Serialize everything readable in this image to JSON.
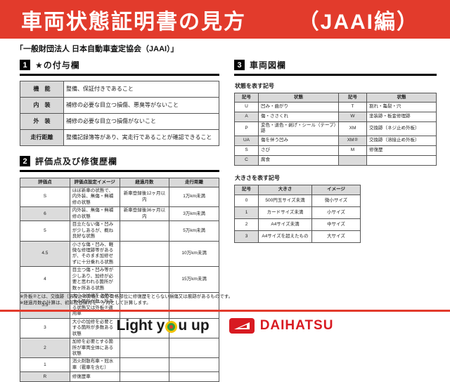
{
  "banner": {
    "title": "車両状態証明書の見方",
    "edition": "（JAAI編）",
    "bg_color": "#e23b2c"
  },
  "subtitle": "「一般財団法人 日本自動車査定協会（JAAI）」",
  "sections": {
    "s1": {
      "num": "1",
      "title": "★の付与欄"
    },
    "s2": {
      "num": "2",
      "title": "評価点及び修復歴欄"
    },
    "s3": {
      "num": "3",
      "title": "車両図欄"
    }
  },
  "star_table": {
    "rows": [
      [
        "機　能",
        "整備、保証付きであること"
      ],
      [
        "内　装",
        "補修の必要な目立つ損傷、悪臭等がないこと"
      ],
      [
        "外　装",
        "補修の必要な目立つ損傷がないこと"
      ],
      [
        "走行距離",
        "整備記録簿等があり、実走行であることが確認できること"
      ]
    ]
  },
  "eval_table": {
    "headers": [
      "評価点",
      "評価点設定イメージ",
      "経過月数",
      "走行距離"
    ],
    "rows": [
      [
        "S",
        "ほぼ新車の状態で、内外装、無傷・無補修の状態",
        "新車登録後12ヶ月以内",
        "1万km未満"
      ],
      [
        "6",
        "内外装、無傷・無補修の状態",
        "新車登録後36ヶ月以内",
        "3万km未満"
      ],
      [
        "5",
        "目立たない傷・凹みが少しあるが、概ね良好な状態",
        "",
        "5万km未満"
      ],
      [
        "4.5",
        "小さな傷・凹み、軽微な修理跡等があるが、そのまま加修せずに十分乗れる状態",
        "",
        "10万km未満"
      ],
      [
        "4",
        "目立つ傷・凹み等が少しあり、加修が必要と思われる箇所が数ヶ所ある状態",
        "",
        "15万km未満"
      ],
      [
        "3.5",
        "大小の加修を必要とする箇所が数ヶ所ある状態又は外板②適用車",
        "",
        ""
      ],
      [
        "3",
        "大小の加修を必要とする箇所が多数ある状態",
        "",
        ""
      ],
      [
        "2",
        "加修を必要とする箇所が車両全体にある状態",
        "",
        ""
      ],
      [
        "1",
        "消火剤散布車・冠水車（雹車を含む）",
        "",
        ""
      ],
      [
        "R",
        "修復歴車",
        "",
        ""
      ]
    ]
  },
  "vehicle_diagram": {
    "state_label": "状態を表す記号",
    "state_table": {
      "headers": [
        "記号",
        "状態",
        "記号",
        "状態"
      ],
      "rows": [
        [
          "U",
          "凹み・曲がり",
          "T",
          "割れ・亀裂・穴"
        ],
        [
          "A",
          "傷・ささくれ",
          "W",
          "塗装跡・板金修理跡"
        ],
        [
          "P",
          "変色・退色・剥げ・シール（テープ）跡",
          "XM",
          "交換跡（ネジ止め外板）"
        ],
        [
          "UA",
          "傷を伴う凹み",
          "XM②",
          "交換跡（溶接止め外板）"
        ],
        [
          "S",
          "さび",
          "M",
          "修復歴"
        ],
        [
          "C",
          "腐食",
          "",
          ""
        ]
      ]
    },
    "size_label": "大きさを表す記号",
    "size_table": {
      "headers": [
        "記号",
        "大きさ",
        "イメージ"
      ],
      "rows": [
        [
          "0",
          "500円玉サイズ未満",
          "微小サイズ"
        ],
        [
          "1",
          "カードサイズ未満",
          "小サイズ"
        ],
        [
          "2",
          "A4サイズ未満",
          "中サイズ"
        ],
        [
          "3",
          "A4サイズを超えたもの",
          "大サイズ"
        ]
      ]
    }
  },
  "notes": [
    "※外板②とは、交換跡（溶接止め外板）及び骨格部位に修復歴をとらない損傷又は痕跡があるものです。",
    "※経過月数の計算は、初年度登録月を一ヶ月として計算します。"
  ],
  "footer": {
    "light_you_up_left": "Light y",
    "light_you_up_right": "u up",
    "daihatsu_label": "DAIHATSU",
    "daihatsu_red": "#d81a21"
  }
}
